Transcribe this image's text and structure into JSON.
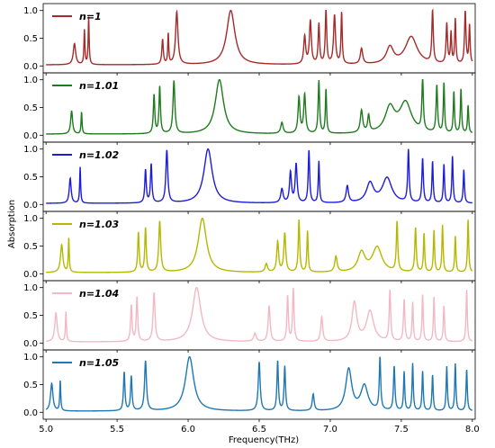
{
  "chart_data": {
    "type": "line",
    "xlabel": "Frequency(THz)",
    "ylabel": "Absorption",
    "xlim": [
      4.98,
      8.02
    ],
    "ylim": [
      -0.06,
      1.06
    ],
    "x_ticks": [
      "5.0",
      "5.5",
      "6.0",
      "6.5",
      "7.0",
      "7.5",
      "8.0"
    ],
    "x_tick_values": [
      5.0,
      5.5,
      6.0,
      6.5,
      7.0,
      7.5,
      8.0
    ],
    "y_ticks": [
      "0.0",
      "0.5",
      "1.0"
    ],
    "y_tick_values": [
      0.0,
      0.5,
      1.0
    ],
    "grid": false,
    "legend_placement": "top-left",
    "panels": [
      {
        "name": "n=1",
        "color": "#a52a2a",
        "baseline": 0.02,
        "peaks": [
          [
            5.2,
            0.38,
            0.01
          ],
          [
            5.27,
            0.62,
            0.004
          ],
          [
            5.3,
            0.85,
            0.004
          ],
          [
            5.82,
            0.45,
            0.006
          ],
          [
            5.86,
            0.55,
            0.004
          ],
          [
            5.92,
            0.95,
            0.01
          ],
          [
            6.3,
            0.98,
            0.035
          ],
          [
            6.82,
            0.5,
            0.008
          ],
          [
            6.86,
            0.78,
            0.008
          ],
          [
            6.92,
            0.72,
            0.006
          ],
          [
            6.97,
            0.98,
            0.006
          ],
          [
            7.03,
            0.88,
            0.008
          ],
          [
            7.08,
            0.93,
            0.005
          ],
          [
            7.22,
            0.28,
            0.01
          ],
          [
            7.42,
            0.3,
            0.03
          ],
          [
            7.57,
            0.5,
            0.05
          ],
          [
            7.72,
            0.95,
            0.006
          ],
          [
            7.82,
            0.72,
            0.006
          ],
          [
            7.85,
            0.55,
            0.005
          ],
          [
            7.88,
            0.8,
            0.005
          ],
          [
            7.95,
            0.95,
            0.006
          ],
          [
            7.98,
            0.7,
            0.005
          ]
        ]
      },
      {
        "name": "n=1.01",
        "color": "#1e7b1e",
        "baseline": 0.02,
        "peaks": [
          [
            5.18,
            0.42,
            0.008
          ],
          [
            5.25,
            0.4,
            0.004
          ],
          [
            5.76,
            0.7,
            0.006
          ],
          [
            5.8,
            0.85,
            0.006
          ],
          [
            5.9,
            0.95,
            0.008
          ],
          [
            6.22,
            0.98,
            0.035
          ],
          [
            6.66,
            0.2,
            0.01
          ],
          [
            6.78,
            0.65,
            0.008
          ],
          [
            6.82,
            0.7,
            0.008
          ],
          [
            6.92,
            0.95,
            0.006
          ],
          [
            6.97,
            0.8,
            0.005
          ],
          [
            7.22,
            0.4,
            0.01
          ],
          [
            7.27,
            0.3,
            0.008
          ],
          [
            7.42,
            0.45,
            0.04
          ],
          [
            7.53,
            0.55,
            0.05
          ],
          [
            7.65,
            0.95,
            0.006
          ],
          [
            7.75,
            0.85,
            0.006
          ],
          [
            7.8,
            0.9,
            0.005
          ],
          [
            7.87,
            0.75,
            0.005
          ],
          [
            7.92,
            0.8,
            0.005
          ],
          [
            7.97,
            0.5,
            0.005
          ]
        ]
      },
      {
        "name": "n=1.02",
        "color": "#1c1cd9",
        "baseline": 0.02,
        "peaks": [
          [
            5.17,
            0.45,
            0.008
          ],
          [
            5.24,
            0.65,
            0.004
          ],
          [
            5.7,
            0.6,
            0.006
          ],
          [
            5.74,
            0.7,
            0.006
          ],
          [
            5.85,
            0.95,
            0.008
          ],
          [
            6.14,
            0.98,
            0.035
          ],
          [
            6.66,
            0.25,
            0.01
          ],
          [
            6.72,
            0.55,
            0.008
          ],
          [
            6.76,
            0.7,
            0.008
          ],
          [
            6.85,
            0.95,
            0.006
          ],
          [
            6.92,
            0.75,
            0.005
          ],
          [
            7.12,
            0.3,
            0.01
          ],
          [
            7.28,
            0.35,
            0.03
          ],
          [
            7.4,
            0.45,
            0.04
          ],
          [
            7.55,
            0.95,
            0.006
          ],
          [
            7.65,
            0.8,
            0.006
          ],
          [
            7.72,
            0.75,
            0.005
          ],
          [
            7.8,
            0.7,
            0.005
          ],
          [
            7.86,
            0.85,
            0.005
          ],
          [
            7.94,
            0.6,
            0.005
          ]
        ]
      },
      {
        "name": "n=1.03",
        "color": "#b5b800",
        "baseline": 0.02,
        "peaks": [
          [
            5.11,
            0.5,
            0.01
          ],
          [
            5.16,
            0.62,
            0.004
          ],
          [
            5.65,
            0.72,
            0.006
          ],
          [
            5.7,
            0.8,
            0.006
          ],
          [
            5.8,
            0.92,
            0.008
          ],
          [
            6.1,
            0.98,
            0.035
          ],
          [
            6.55,
            0.15,
            0.01
          ],
          [
            6.63,
            0.55,
            0.008
          ],
          [
            6.68,
            0.7,
            0.008
          ],
          [
            6.78,
            0.95,
            0.006
          ],
          [
            6.84,
            0.75,
            0.005
          ],
          [
            7.04,
            0.28,
            0.01
          ],
          [
            7.22,
            0.35,
            0.03
          ],
          [
            7.33,
            0.45,
            0.04
          ],
          [
            7.47,
            0.9,
            0.006
          ],
          [
            7.6,
            0.8,
            0.006
          ],
          [
            7.66,
            0.7,
            0.005
          ],
          [
            7.73,
            0.75,
            0.005
          ],
          [
            7.79,
            0.85,
            0.005
          ],
          [
            7.88,
            0.65,
            0.005
          ],
          [
            7.97,
            0.95,
            0.005
          ]
        ]
      },
      {
        "name": "n=1.04",
        "color": "#f2b8c6",
        "baseline": 0.02,
        "peaks": [
          [
            5.07,
            0.52,
            0.01
          ],
          [
            5.14,
            0.55,
            0.004
          ],
          [
            5.6,
            0.65,
            0.006
          ],
          [
            5.64,
            0.8,
            0.006
          ],
          [
            5.76,
            0.88,
            0.008
          ],
          [
            6.06,
            0.98,
            0.035
          ],
          [
            6.47,
            0.15,
            0.01
          ],
          [
            6.57,
            0.65,
            0.008
          ],
          [
            6.7,
            0.82,
            0.006
          ],
          [
            6.74,
            0.95,
            0.006
          ],
          [
            6.94,
            0.45,
            0.008
          ],
          [
            7.17,
            0.7,
            0.02
          ],
          [
            7.28,
            0.55,
            0.03
          ],
          [
            7.42,
            0.92,
            0.006
          ],
          [
            7.52,
            0.75,
            0.006
          ],
          [
            7.58,
            0.7,
            0.005
          ],
          [
            7.65,
            0.85,
            0.005
          ],
          [
            7.73,
            0.8,
            0.005
          ],
          [
            7.8,
            0.65,
            0.005
          ],
          [
            7.96,
            0.95,
            0.005
          ]
        ]
      },
      {
        "name": "n=1.05",
        "color": "#1f77b4",
        "baseline": 0.02,
        "peaks": [
          [
            5.04,
            0.5,
            0.01
          ],
          [
            5.1,
            0.55,
            0.004
          ],
          [
            5.55,
            0.7,
            0.006
          ],
          [
            5.6,
            0.62,
            0.006
          ],
          [
            5.7,
            0.9,
            0.008
          ],
          [
            6.01,
            0.98,
            0.035
          ],
          [
            6.5,
            0.88,
            0.008
          ],
          [
            6.63,
            0.9,
            0.006
          ],
          [
            6.68,
            0.8,
            0.006
          ],
          [
            6.88,
            0.3,
            0.008
          ],
          [
            7.13,
            0.75,
            0.025
          ],
          [
            7.24,
            0.45,
            0.03
          ],
          [
            7.35,
            0.95,
            0.006
          ],
          [
            7.45,
            0.8,
            0.006
          ],
          [
            7.52,
            0.7,
            0.005
          ],
          [
            7.58,
            0.85,
            0.005
          ],
          [
            7.65,
            0.72,
            0.005
          ],
          [
            7.72,
            0.65,
            0.005
          ],
          [
            7.82,
            0.8,
            0.005
          ],
          [
            7.88,
            0.85,
            0.005
          ],
          [
            7.96,
            0.75,
            0.005
          ]
        ]
      }
    ]
  }
}
